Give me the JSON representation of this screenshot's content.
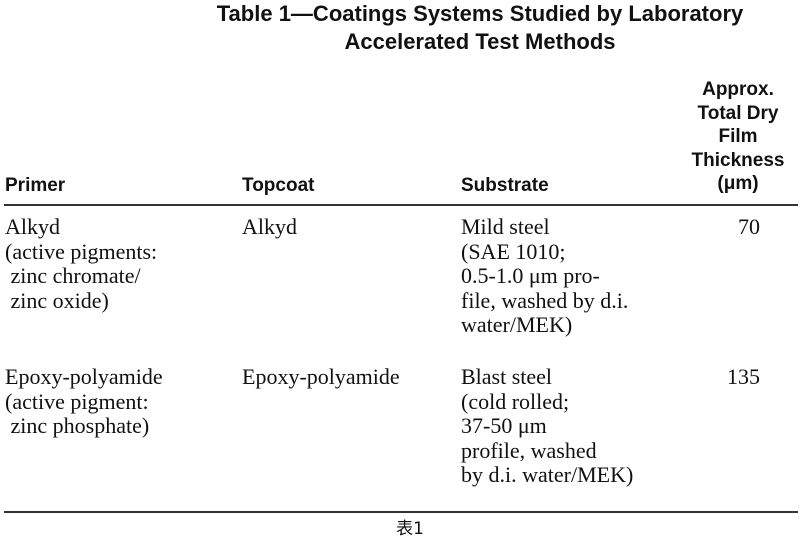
{
  "title": {
    "line1": "Table 1—Coatings Systems Studied by Laboratory",
    "line2": "Accelerated Test Methods"
  },
  "columns": [
    "Primer",
    "Topcoat",
    "Substrate",
    "Approx.\nTotal Dry\nFilm\nThickness\n(μm)"
  ],
  "rows": [
    {
      "primer": "Alkyd\n(active pigments:\n zinc chromate/\n zinc oxide)",
      "topcoat": "Alkyd",
      "substrate": "Mild steel\n(SAE 1010;\n0.5-1.0 μm pro-\nfile, washed by d.i.\nwater/MEK)",
      "thickness": "70"
    },
    {
      "primer": "Epoxy-polyamide\n(active pigment:\n zinc phosphate)",
      "topcoat": "Epoxy-polyamide",
      "substrate": "Blast steel\n(cold rolled;\n37-50 μm\nprofile, washed\nby d.i. water/MEK)",
      "thickness": "135"
    }
  ],
  "caption": "表1"
}
